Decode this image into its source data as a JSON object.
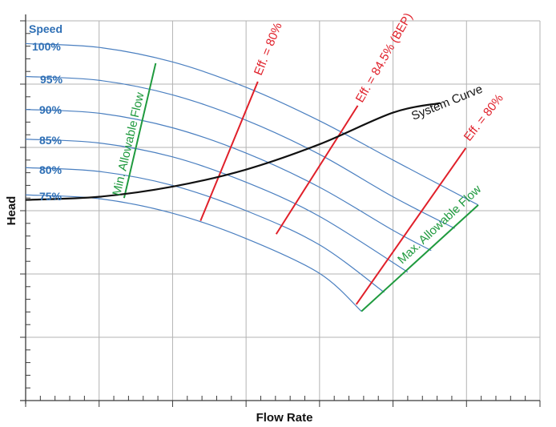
{
  "chart_data": {
    "type": "line",
    "title": "",
    "xlabel": "Flow Rate",
    "ylabel": "Head",
    "grid": true,
    "xlim": [
      0,
      7
    ],
    "ylim": [
      0,
      6
    ],
    "x_major_ticks": 7,
    "x_minor_per_major": 5,
    "y_major_ticks": 6,
    "y_minor_per_major": 5,
    "speed_header": "Speed",
    "series": [
      {
        "name": "100%",
        "kind": "speed",
        "label": "100%",
        "points": [
          [
            0,
            5.64
          ],
          [
            1,
            5.58
          ],
          [
            2,
            5.35
          ],
          [
            3,
            4.95
          ],
          [
            4,
            4.42
          ],
          [
            5,
            3.8
          ],
          [
            6.16,
            3.09
          ]
        ]
      },
      {
        "name": "95%",
        "kind": "speed",
        "label": "95%",
        "points": [
          [
            0,
            5.12
          ],
          [
            1,
            5.06
          ],
          [
            2,
            4.83
          ],
          [
            3,
            4.43
          ],
          [
            4,
            3.89
          ],
          [
            5,
            3.22
          ],
          [
            5.84,
            2.72
          ]
        ]
      },
      {
        "name": "90%",
        "kind": "speed",
        "label": "90%",
        "points": [
          [
            0,
            4.6
          ],
          [
            1,
            4.54
          ],
          [
            2,
            4.31
          ],
          [
            3,
            3.91
          ],
          [
            4,
            3.37
          ],
          [
            5,
            2.69
          ],
          [
            5.52,
            2.37
          ]
        ]
      },
      {
        "name": "85%",
        "kind": "speed",
        "label": "85%",
        "points": [
          [
            0,
            4.13
          ],
          [
            1,
            4.07
          ],
          [
            2,
            3.85
          ],
          [
            3,
            3.45
          ],
          [
            4,
            2.91
          ],
          [
            5.2,
            2.03
          ]
        ]
      },
      {
        "name": "80%",
        "kind": "speed",
        "label": "80%",
        "points": [
          [
            0,
            3.68
          ],
          [
            1,
            3.62
          ],
          [
            2,
            3.4
          ],
          [
            3,
            3.0
          ],
          [
            4,
            2.46
          ],
          [
            4.88,
            1.71
          ]
        ]
      },
      {
        "name": "75%",
        "kind": "speed",
        "label": "75%",
        "points": [
          [
            0,
            3.25
          ],
          [
            1,
            3.19
          ],
          [
            2,
            2.96
          ],
          [
            3,
            2.56
          ],
          [
            4,
            2.01
          ],
          [
            4.57,
            1.41
          ]
        ]
      },
      {
        "name": "System Curve",
        "kind": "system",
        "label": "System Curve",
        "points": [
          [
            0,
            3.17
          ],
          [
            1,
            3.22
          ],
          [
            2,
            3.38
          ],
          [
            3,
            3.65
          ],
          [
            4,
            4.05
          ],
          [
            5,
            4.55
          ],
          [
            5.64,
            4.42
          ]
        ]
      },
      {
        "name": "Eff. = 80% (left)",
        "kind": "efficiency",
        "label": "Eff. = 80%",
        "points": [
          [
            3.16,
            5.04
          ],
          [
            2.38,
            2.84
          ]
        ]
      },
      {
        "name": "Eff. = 84.5% (BEP)",
        "kind": "efficiency",
        "label": "Eff. = 84.5% (BEP)",
        "points": [
          [
            4.52,
            4.66
          ],
          [
            3.41,
            2.63
          ]
        ]
      },
      {
        "name": "Eff. = 80% (right)",
        "kind": "efficiency",
        "label": "Eff. = 80%",
        "points": [
          [
            5.99,
            3.99
          ],
          [
            4.5,
            1.52
          ]
        ]
      },
      {
        "name": "Min. Allowable Flow",
        "kind": "flow_limit",
        "label": "Min. Allowable Flow",
        "points": [
          [
            1.77,
            5.33
          ],
          [
            1.34,
            3.2
          ]
        ]
      },
      {
        "name": "Max. Allowable Flow",
        "kind": "flow_limit",
        "label": "Max. Allowable Flow",
        "points": [
          [
            6.16,
            3.09
          ],
          [
            4.57,
            1.41
          ]
        ]
      }
    ]
  },
  "labels": {
    "speed_header": "Speed",
    "speed_100": "100%",
    "speed_95": "95%",
    "speed_90": "90%",
    "speed_85": "85%",
    "speed_80": "80%",
    "speed_75": "75%",
    "eff_left": "Eff. = 80%",
    "eff_bep": "Eff. = 84.5% (BEP)",
    "eff_right": "Eff. = 80%",
    "system_curve": "System Curve",
    "min_flow": "Min. Allowable Flow",
    "max_flow": "Max. Allowable Flow",
    "x_axis": "Flow Rate",
    "y_axis": "Head"
  },
  "colors": {
    "speed": "#4a7fc0",
    "speed_label": "#2e6fb5",
    "efficiency": "#e0202a",
    "flow_limit": "#1f9a3e",
    "system": "#111111",
    "grid": "#b3b3b3"
  }
}
